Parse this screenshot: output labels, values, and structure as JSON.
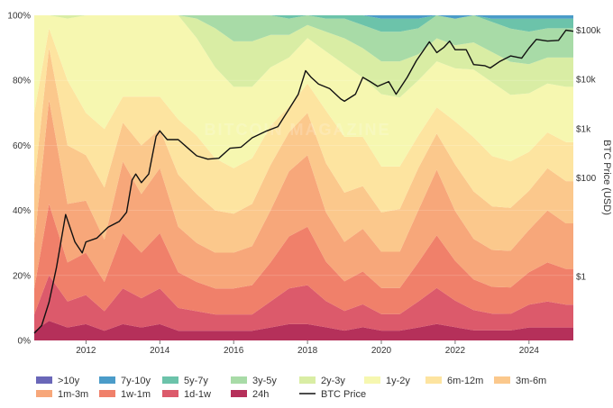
{
  "chart_data": {
    "type": "area",
    "x_ticks": [
      "2012",
      "2014",
      "2016",
      "2018",
      "2020",
      "2022",
      "2024"
    ],
    "y_left_ticks": [
      "0%",
      "20%",
      "40%",
      "60%",
      "80%",
      "100%"
    ],
    "y_right_ticks": [
      "$1",
      "$100",
      "$1k",
      "$10k",
      "$100k"
    ],
    "y_right_label": "BTC Price (USD)",
    "x_range": [
      2010.6,
      2025.2
    ],
    "y_left_range": [
      0,
      100
    ],
    "y_right_scale": "log",
    "y_right_range": [
      0.05,
      200000
    ],
    "stacking": "stacked to 100%",
    "legend_placement": "bottom",
    "x": [
      2010.6,
      2011.0,
      2011.5,
      2012.0,
      2012.5,
      2013.0,
      2013.5,
      2014.0,
      2014.5,
      2015.0,
      2015.5,
      2016.0,
      2016.5,
      2017.0,
      2017.5,
      2018.0,
      2018.5,
      2019.0,
      2019.5,
      2020.0,
      2020.5,
      2021.0,
      2021.5,
      2022.0,
      2022.5,
      2023.0,
      2023.5,
      2024.0,
      2024.5,
      2025.0,
      2025.2
    ],
    "series": [
      {
        "name": "24h",
        "color": "#b5305a",
        "values": [
          3,
          6,
          4,
          5,
          3,
          5,
          4,
          5,
          3,
          3,
          3,
          3,
          3,
          4,
          5,
          5,
          4,
          3,
          4,
          3,
          3,
          4,
          5,
          4,
          3,
          3,
          3,
          4,
          4,
          4,
          4
        ]
      },
      {
        "name": "1d-1w",
        "color": "#dc5a6b",
        "values": [
          5,
          14,
          8,
          9,
          6,
          11,
          9,
          11,
          7,
          6,
          5,
          5,
          5,
          8,
          11,
          12,
          8,
          6,
          7,
          5,
          5,
          8,
          11,
          8,
          6,
          5,
          5,
          7,
          8,
          7,
          7
        ]
      },
      {
        "name": "1w-1m",
        "color": "#f0806a",
        "values": [
          8,
          22,
          12,
          13,
          9,
          17,
          14,
          17,
          11,
          9,
          8,
          8,
          9,
          12,
          16,
          18,
          12,
          9,
          10,
          8,
          8,
          12,
          16,
          12,
          9,
          8,
          8,
          10,
          12,
          11,
          11
        ]
      },
      {
        "name": "1m-3m",
        "color": "#f7a77a",
        "values": [
          14,
          32,
          18,
          16,
          13,
          22,
          18,
          20,
          14,
          12,
          11,
          11,
          12,
          16,
          20,
          22,
          15,
          12,
          13,
          11,
          11,
          16,
          20,
          15,
          12,
          11,
          11,
          13,
          16,
          14,
          14
        ]
      },
      {
        "name": "3m-6m",
        "color": "#fbc88c",
        "values": [
          18,
          16,
          18,
          14,
          16,
          12,
          15,
          12,
          16,
          15,
          13,
          12,
          13,
          14,
          12,
          13,
          15,
          15,
          13,
          12,
          13,
          13,
          11,
          14,
          14,
          13,
          13,
          12,
          13,
          13,
          13
        ]
      },
      {
        "name": "6m-12m",
        "color": "#fde4a0",
        "values": [
          22,
          6,
          20,
          13,
          18,
          8,
          15,
          10,
          17,
          18,
          16,
          14,
          14,
          12,
          8,
          9,
          16,
          17,
          15,
          14,
          13,
          10,
          8,
          13,
          16,
          15,
          14,
          12,
          11,
          12,
          12
        ]
      },
      {
        "name": "1y-2y",
        "color": "#f6f7b0",
        "values": [
          30,
          4,
          19,
          30,
          35,
          25,
          25,
          25,
          32,
          30,
          28,
          25,
          22,
          18,
          15,
          14,
          18,
          22,
          18,
          22,
          21,
          17,
          14,
          16,
          20,
          22,
          20,
          18,
          15,
          17,
          17
        ]
      },
      {
        "name": "2y-3y",
        "color": "#d9eda4",
        "values": [
          0,
          0,
          1,
          0,
          0,
          0,
          0,
          0,
          0,
          6,
          12,
          14,
          14,
          10,
          7,
          4,
          6,
          8,
          9,
          10,
          11,
          8,
          7,
          7,
          8,
          9,
          10,
          9,
          8,
          9,
          9
        ]
      },
      {
        "name": "3y-5y",
        "color": "#a8dba7",
        "values": [
          0,
          0,
          0,
          0,
          0,
          0,
          0,
          0,
          0,
          1,
          4,
          8,
          8,
          6,
          5,
          3,
          4,
          6,
          7,
          9,
          9,
          8,
          7,
          8,
          8,
          9,
          10,
          10,
          9,
          9,
          9
        ]
      },
      {
        "name": "5y-7y",
        "color": "#6cc3aa",
        "values": [
          0,
          0,
          0,
          0,
          0,
          0,
          0,
          0,
          0,
          0,
          0,
          0,
          0,
          0,
          1,
          0,
          1,
          1,
          3,
          4,
          4,
          3,
          0,
          0,
          0,
          1,
          3,
          4,
          3,
          3,
          3
        ]
      },
      {
        "name": "7y-10y",
        "color": "#4b9cc9",
        "values": [
          0,
          0,
          0,
          0,
          0,
          0,
          0,
          0,
          0,
          0,
          0,
          0,
          0,
          0,
          0,
          0,
          0,
          0,
          0,
          1,
          1,
          1,
          0,
          1,
          0,
          1,
          1,
          1,
          1,
          1,
          1
        ]
      },
      {
        "name": ">10y",
        "color": "#6a67b8",
        "values": [
          0,
          0,
          0,
          0,
          0,
          0,
          0,
          0,
          0,
          0,
          0,
          0,
          0,
          0,
          0,
          0,
          0,
          0,
          0,
          0,
          0,
          0,
          0,
          0,
          0,
          0,
          0,
          0,
          0,
          0,
          0
        ]
      }
    ],
    "btc_price": {
      "name": "BTC Price",
      "color": "#111111",
      "x": [
        2010.6,
        2010.8,
        2011.0,
        2011.2,
        2011.45,
        2011.7,
        2011.9,
        2012.0,
        2012.3,
        2012.6,
        2012.9,
        2013.1,
        2013.25,
        2013.35,
        2013.5,
        2013.7,
        2013.9,
        2014.0,
        2014.2,
        2014.5,
        2014.8,
        2015.0,
        2015.3,
        2015.6,
        2015.9,
        2016.2,
        2016.5,
        2016.9,
        2017.2,
        2017.5,
        2017.75,
        2017.95,
        2018.1,
        2018.3,
        2018.6,
        2018.9,
        2019.0,
        2019.3,
        2019.5,
        2019.7,
        2019.9,
        2020.2,
        2020.4,
        2020.7,
        2020.95,
        2021.1,
        2021.3,
        2021.5,
        2021.7,
        2021.85,
        2022.0,
        2022.3,
        2022.5,
        2022.8,
        2022.95,
        2023.2,
        2023.5,
        2023.8,
        2024.0,
        2024.2,
        2024.5,
        2024.8,
        2025.0,
        2025.2
      ],
      "values": [
        0.07,
        0.1,
        0.3,
        1.5,
        18,
        5,
        3,
        5,
        6,
        10,
        13,
        20,
        90,
        120,
        80,
        120,
        700,
        900,
        600,
        600,
        380,
        280,
        240,
        250,
        400,
        420,
        650,
        900,
        1100,
        2500,
        5000,
        15000,
        11000,
        8000,
        6500,
        4000,
        3600,
        5000,
        11000,
        9000,
        7200,
        9000,
        5000,
        11000,
        24000,
        35000,
        58000,
        35000,
        45000,
        60000,
        40000,
        40000,
        20000,
        19000,
        17000,
        23000,
        30000,
        27000,
        43000,
        65000,
        60000,
        62000,
        100000,
        95000
      ]
    }
  },
  "legend": {
    "items": [
      {
        "label": ">10y",
        "color": "#6a67b8",
        "kind": "area"
      },
      {
        "label": "7y-10y",
        "color": "#4b9cc9",
        "kind": "area"
      },
      {
        "label": "5y-7y",
        "color": "#6cc3aa",
        "kind": "area"
      },
      {
        "label": "3y-5y",
        "color": "#a8dba7",
        "kind": "area"
      },
      {
        "label": "2y-3y",
        "color": "#d9eda4",
        "kind": "area"
      },
      {
        "label": "1y-2y",
        "color": "#f6f7b0",
        "kind": "area"
      },
      {
        "label": "6m-12m",
        "color": "#fde4a0",
        "kind": "area"
      },
      {
        "label": "3m-6m",
        "color": "#fbc88c",
        "kind": "area"
      },
      {
        "label": "1m-3m",
        "color": "#f7a77a",
        "kind": "area"
      },
      {
        "label": "1w-1m",
        "color": "#f0806a",
        "kind": "area"
      },
      {
        "label": "1d-1w",
        "color": "#dc5a6b",
        "kind": "area"
      },
      {
        "label": "24h",
        "color": "#b5305a",
        "kind": "area"
      },
      {
        "label": "BTC Price",
        "color": "#111111",
        "kind": "line"
      }
    ]
  },
  "watermark": {
    "text": "BITCOIN MAGAZINE"
  }
}
